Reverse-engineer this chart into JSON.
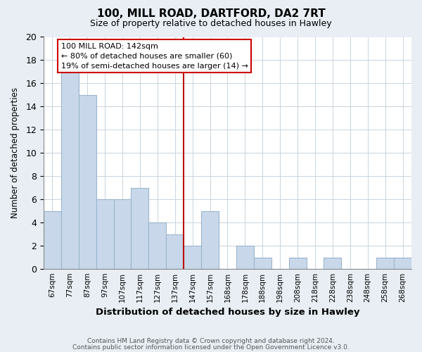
{
  "title": "100, MILL ROAD, DARTFORD, DA2 7RT",
  "subtitle": "Size of property relative to detached houses in Hawley",
  "xlabel": "Distribution of detached houses by size in Hawley",
  "ylabel": "Number of detached properties",
  "bar_labels": [
    "67sqm",
    "77sqm",
    "87sqm",
    "97sqm",
    "107sqm",
    "117sqm",
    "127sqm",
    "137sqm",
    "147sqm",
    "157sqm",
    "168sqm",
    "178sqm",
    "188sqm",
    "198sqm",
    "208sqm",
    "218sqm",
    "228sqm",
    "238sqm",
    "248sqm",
    "258sqm",
    "268sqm"
  ],
  "bar_values": [
    5,
    17,
    15,
    6,
    6,
    7,
    4,
    3,
    2,
    5,
    0,
    2,
    1,
    0,
    1,
    0,
    1,
    0,
    0,
    1,
    1
  ],
  "bar_color": "#c8d8ea",
  "bar_edge_color": "#9ab4cc",
  "vline_color": "#bb0000",
  "vline_x_idx": 8,
  "ylim": [
    0,
    20
  ],
  "yticks": [
    0,
    2,
    4,
    6,
    8,
    10,
    12,
    14,
    16,
    18,
    20
  ],
  "annotation_title": "100 MILL ROAD: 142sqm",
  "annotation_line1": "← 80% of detached houses are smaller (60)",
  "annotation_line2": "19% of semi-detached houses are larger (14) →",
  "footer1": "Contains HM Land Registry data © Crown copyright and database right 2024.",
  "footer2": "Contains public sector information licensed under the Open Government Licence v3.0.",
  "background_color": "#e8eef4",
  "plot_background_color": "#ffffff",
  "grid_color": "#c8d4df"
}
